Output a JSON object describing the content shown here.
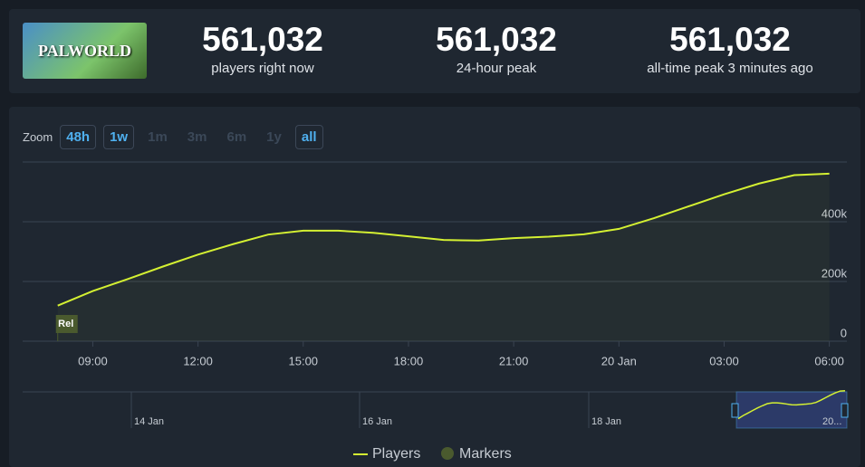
{
  "header": {
    "game_logo": "PALWORLD",
    "stats": [
      {
        "value": "561,032",
        "label": "players right now"
      },
      {
        "value": "561,032",
        "label": "24-hour peak"
      },
      {
        "value": "561,032",
        "label": "all-time peak 3 minutes ago"
      }
    ]
  },
  "zoom": {
    "label": "Zoom",
    "buttons": [
      "48h",
      "1w",
      "1m",
      "3m",
      "6m",
      "1y",
      "all"
    ]
  },
  "chart_data": {
    "type": "line",
    "x": [
      8,
      9,
      10,
      11,
      12,
      13,
      14,
      15,
      16,
      17,
      18,
      19,
      20,
      21,
      22,
      23,
      24,
      25,
      26,
      27,
      28,
      29,
      30
    ],
    "series": [
      {
        "name": "Players",
        "color": "#d4f032",
        "values": [
          119000,
          168000,
          208000,
          250000,
          290000,
          325000,
          357000,
          370000,
          370000,
          363000,
          351000,
          339000,
          337000,
          345000,
          350000,
          358000,
          376000,
          412000,
          452000,
          492000,
          528000,
          556000,
          561032
        ]
      }
    ],
    "xlim": [
      7,
      30.5
    ],
    "xticks": [
      {
        "value": 9,
        "label": "09:00"
      },
      {
        "value": 12,
        "label": "12:00"
      },
      {
        "value": 15,
        "label": "15:00"
      },
      {
        "value": 18,
        "label": "18:00"
      },
      {
        "value": 21,
        "label": "21:00"
      },
      {
        "value": 24,
        "label": "20 Jan"
      },
      {
        "value": 27,
        "label": "03:00"
      },
      {
        "value": 30,
        "label": "06:00"
      }
    ],
    "ylim": [
      0,
      600000
    ],
    "yticks": [
      0,
      {
        "value": 200000,
        "label": "200k"
      },
      {
        "value": 400000,
        "label": "400k"
      }
    ],
    "grid": true,
    "markers": [
      {
        "x": 8,
        "label": "Rel"
      }
    ],
    "marker_legend": "Markers",
    "navigator_labels": [
      "14 Jan",
      "16 Jan",
      "18 Jan",
      "20..."
    ]
  }
}
